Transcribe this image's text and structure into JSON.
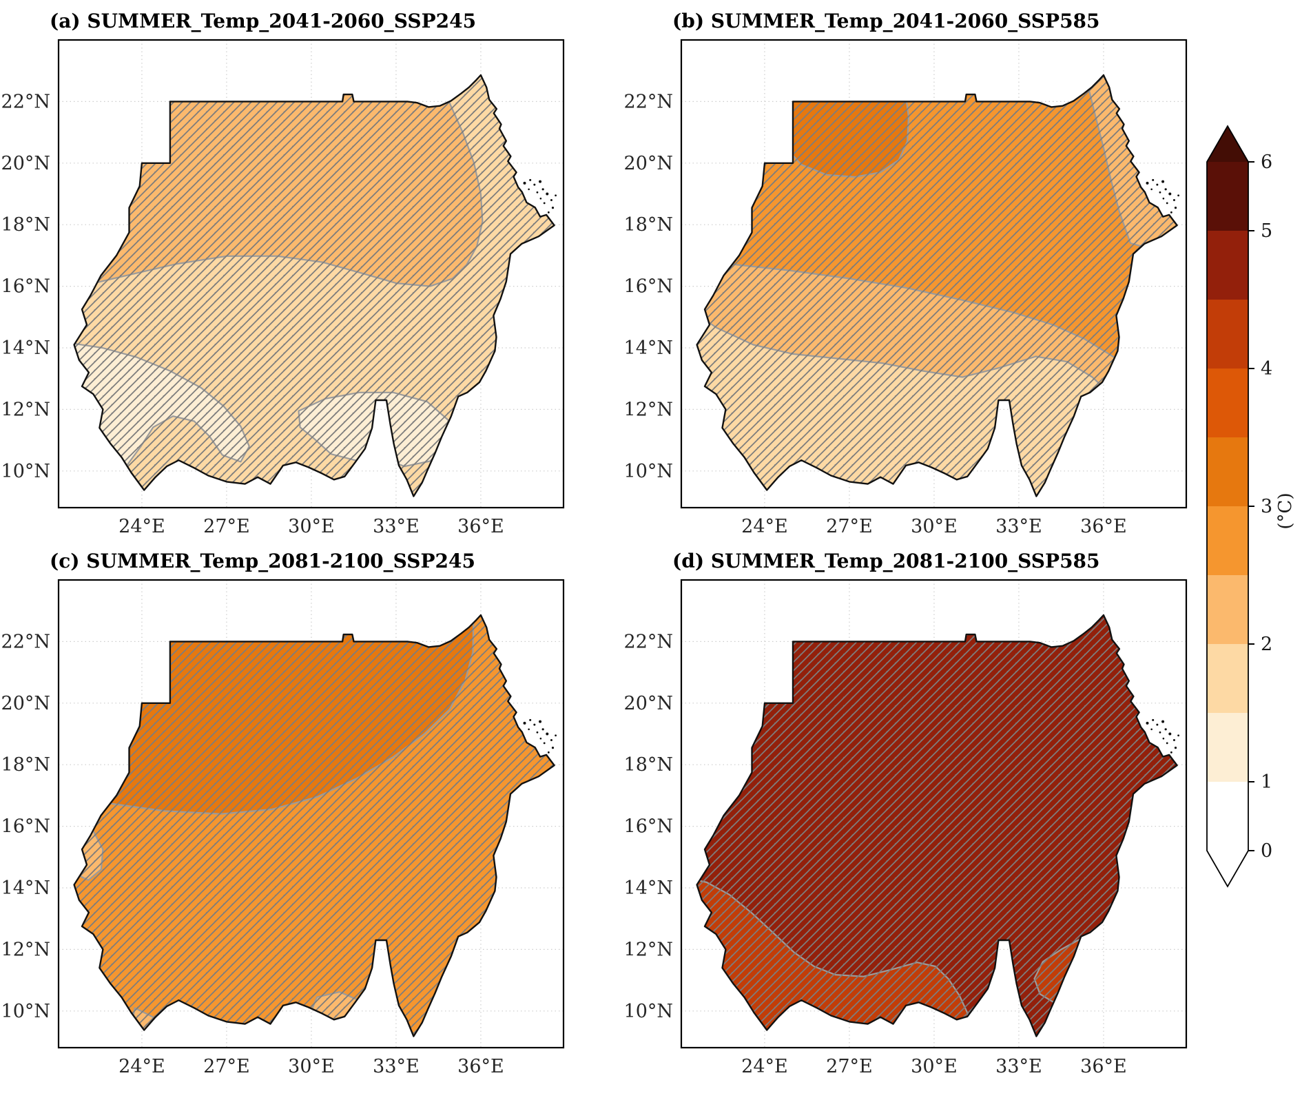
{
  "figure": {
    "background": "#ffffff",
    "kind": "climate projection map grid"
  },
  "panels": [
    {
      "id": "a",
      "title": "(a) SUMMER_Temp_2041-2060_SSP245",
      "x_tick_labels": [
        "24°E",
        "27°E",
        "30°E",
        "33°E",
        "36°E"
      ],
      "y_tick_labels": [
        "22°N",
        "20°N",
        "18°N",
        "16°N",
        "14°N",
        "12°N",
        "10°N"
      ],
      "zones": [
        {
          "name": "country-base",
          "temp_bin_c": "1.5–2",
          "color": "#fdd9a4"
        },
        {
          "name": "north-band",
          "temp_bin_c": "2–2.5",
          "color": "#fbb96d"
        },
        {
          "name": "southwest-patch",
          "temp_bin_c": "1–1.5",
          "color": "#fdeed4"
        },
        {
          "name": "southeast-patch",
          "temp_bin_c": "1–1.5",
          "color": "#fdeed4"
        }
      ]
    },
    {
      "id": "b",
      "title": "(b) SUMMER_Temp_2041-2060_SSP585",
      "x_tick_labels": [
        "24°E",
        "27°E",
        "30°E",
        "33°E",
        "36°E"
      ],
      "y_tick_labels": [
        "22°N",
        "20°N",
        "18°N",
        "16°N",
        "14°N",
        "12°N",
        "10°N"
      ],
      "zones": [
        {
          "name": "country-base",
          "temp_bin_c": "1.5–2",
          "color": "#fdd9a4"
        },
        {
          "name": "middle-band",
          "temp_bin_c": "2–2.5",
          "color": "#fbb96d"
        },
        {
          "name": "north-band",
          "temp_bin_c": "2.5–3",
          "color": "#f5962f"
        },
        {
          "name": "northwest-blob",
          "temp_bin_c": "3–3.5",
          "color": "#e6780f"
        }
      ]
    },
    {
      "id": "c",
      "title": "(c) SUMMER_Temp_2081-2100_SSP245",
      "x_tick_labels": [
        "24°E",
        "27°E",
        "30°E",
        "33°E",
        "36°E"
      ],
      "y_tick_labels": [
        "22°N",
        "20°N",
        "18°N",
        "16°N",
        "14°N",
        "12°N",
        "10°N"
      ],
      "zones": [
        {
          "name": "country-base",
          "temp_bin_c": "2.5–3",
          "color": "#f5962f"
        },
        {
          "name": "north-zone",
          "temp_bin_c": "3–3.5",
          "color": "#e6780f"
        },
        {
          "name": "west-border-patch",
          "temp_bin_c": "2–2.5",
          "color": "#fbb96d"
        },
        {
          "name": "south-center-patch",
          "temp_bin_c": "2–2.5",
          "color": "#fbb96d"
        },
        {
          "name": "southwest-tail-patch",
          "temp_bin_c": "2–2.5",
          "color": "#fbb96d"
        }
      ]
    },
    {
      "id": "d",
      "title": "(d) SUMMER_Temp_2081-2100_SSP585",
      "x_tick_labels": [
        "24°E",
        "27°E",
        "30°E",
        "33°E",
        "36°E"
      ],
      "y_tick_labels": [
        "22°N",
        "20°N",
        "18°N",
        "16°N",
        "14°N",
        "12°N",
        "10°N"
      ],
      "zones": [
        {
          "name": "country-base",
          "temp_bin_c": "4.5–5",
          "color": "#93200b"
        },
        {
          "name": "southwest-band",
          "temp_bin_c": "4–4.5",
          "color": "#c23d08"
        },
        {
          "name": "southeast-blob",
          "temp_bin_c": "4–4.5",
          "color": "#c23d08"
        }
      ]
    }
  ],
  "colorbar": {
    "unit": "(°C)",
    "tick_labels": [
      "6",
      "5",
      "4",
      "3",
      "2",
      "1",
      "0"
    ],
    "bins_bottom_to_top": [
      {
        "range": "0–1",
        "color": "#ffffff"
      },
      {
        "range": "1–1.5",
        "color": "#fdeed4"
      },
      {
        "range": "1.5–2",
        "color": "#fdd9a4"
      },
      {
        "range": "2–2.5",
        "color": "#fbb96d"
      },
      {
        "range": "2.5–3",
        "color": "#f5962f"
      },
      {
        "range": "3–3.5",
        "color": "#e6780f"
      },
      {
        "range": "3.5–4",
        "color": "#dd5807"
      },
      {
        "range": "4–4.5",
        "color": "#c23d08"
      },
      {
        "range": "4.5–5",
        "color": "#93200b"
      },
      {
        "range": "5–6",
        "color": "#5a1007"
      }
    ],
    "extend_above_color": "#430d05",
    "extend_below_color": "#ffffff"
  },
  "style": {
    "grid_color": "#cccccc",
    "hatch_color": "#7d7d7d",
    "contour_color": "#9b9b9b",
    "outline_color": "#111111",
    "tick_text_color": "#262626"
  },
  "chart_data": {
    "type": "heatmap",
    "subtype": "choropleth map grid (filled temperature-change contours over Sudan)",
    "region": "Sudan",
    "unit": "°C",
    "grid": true,
    "legend_position": "right colorbar, vertical, extend both ends",
    "colorbar_boundaries": [
      0,
      1,
      1.5,
      2,
      2.5,
      3,
      3.5,
      4,
      4.5,
      5,
      6
    ],
    "colorbar_ticks": [
      0,
      1,
      2,
      3,
      4,
      5,
      6
    ],
    "colorbar_colors_bottom_to_top": [
      "#ffffff",
      "#fdeed4",
      "#fdd9a4",
      "#fbb96d",
      "#f5962f",
      "#e6780f",
      "#dd5807",
      "#c23d08",
      "#93200b",
      "#5a1007"
    ],
    "x_ticks": [
      "24°E",
      "27°E",
      "30°E",
      "33°E",
      "36°E"
    ],
    "y_ticks": [
      "10°N",
      "12°N",
      "14°N",
      "16°N",
      "18°N",
      "20°N",
      "22°N"
    ],
    "lon_range_deg_e": [
      21.05,
      38.93
    ],
    "lat_range_deg_n": [
      8.8,
      24.0
    ],
    "hatching": "diagonal significance hatching over the whole country in every panel",
    "panels": [
      {
        "id": "a",
        "title": "(a) SUMMER_Temp_2041-2060_SSP245",
        "season": "SUMMER",
        "period": "2041-2060",
        "scenario": "SSP245",
        "values_by_region": {
          "north_band": "2–2.5",
          "center_and_south": "1.5–2",
          "southwest_patch": "1–1.5",
          "southeast_patch": "1–1.5"
        }
      },
      {
        "id": "b",
        "title": "(b) SUMMER_Temp_2041-2060_SSP585",
        "season": "SUMMER",
        "period": "2041-2060",
        "scenario": "SSP585",
        "values_by_region": {
          "northwest_blob": "3–3.5",
          "north_band": "2.5–3",
          "middle_band": "2–2.5",
          "south": "1.5–2"
        }
      },
      {
        "id": "c",
        "title": "(c) SUMMER_Temp_2081-2100_SSP245",
        "season": "SUMMER",
        "period": "2081-2100",
        "scenario": "SSP245",
        "values_by_region": {
          "north_zone": "3–3.5",
          "center_and_south": "2.5–3",
          "west_border_patch": "2–2.5",
          "south_patches": "2–2.5"
        }
      },
      {
        "id": "d",
        "title": "(d) SUMMER_Temp_2081-2100_SSP585",
        "season": "SUMMER",
        "period": "2081-2100",
        "scenario": "SSP585",
        "values_by_region": {
          "main_body": "4.5–5",
          "southwest_band": "4–4.5",
          "southeast_blob": "4–4.5"
        }
      }
    ]
  }
}
